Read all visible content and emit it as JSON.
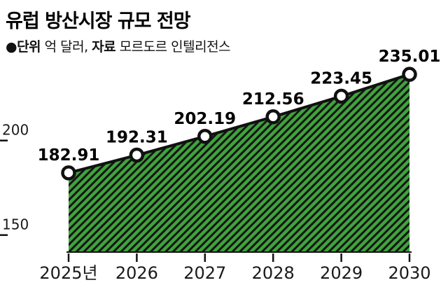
{
  "title": "유럽 방산시장 규모 전망",
  "subtitle": {
    "unit_label": "●단위",
    "unit_value": " 억 달러, ",
    "source_label": "자료",
    "source_value": " 모르도르 인텔리전스"
  },
  "colors": {
    "area_green": "#3fa33c",
    "hatch_black": "#141414",
    "line_black": "#111111",
    "point_fill": "#ffffff",
    "text_black": "#000000",
    "axis_text": "#1a1a1a"
  },
  "chart_data": {
    "type": "area",
    "title": "유럽 방산시장 규모 전망",
    "unit": "억 달러",
    "source": "모르도르 인텔리전스",
    "categories": [
      "2025년",
      "2026",
      "2027",
      "2028",
      "2029",
      "2030"
    ],
    "values": [
      182.91,
      192.31,
      202.19,
      212.56,
      223.45,
      235.01
    ],
    "value_labels": [
      "182.91",
      "192.31",
      "202.19",
      "212.56",
      "223.45",
      "235.01"
    ],
    "yticks": [
      200,
      150
    ],
    "ytick_labels": [
      "200",
      "150"
    ],
    "ylim": [
      141,
      245
    ],
    "grid": false,
    "legend": "none",
    "fill_style": "green with black diagonal hatch"
  }
}
